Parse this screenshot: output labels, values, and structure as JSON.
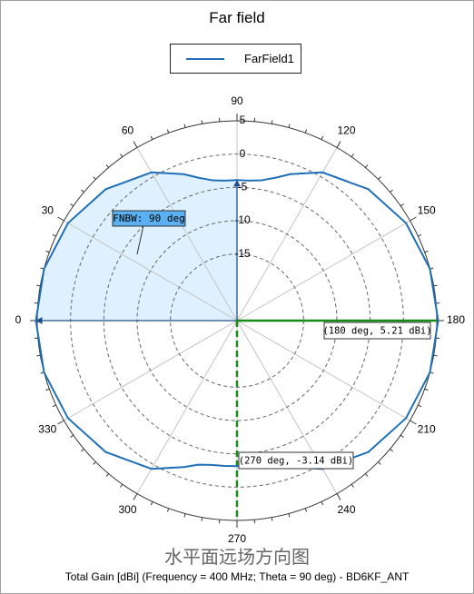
{
  "chart_data": {
    "type": "polar-line",
    "title": "Far field",
    "caption": "水平面远场方向图",
    "footer": "Total Gain [dBi] (Frequency = 400 MHz; Theta = 90 deg) - BD6KF_ANT",
    "legend": {
      "position": "top-center",
      "entries": [
        "FarField1"
      ]
    },
    "angle_labels": [
      "0",
      "30",
      "60",
      "90",
      "120",
      "150",
      "180",
      "210",
      "240",
      "270",
      "300",
      "330"
    ],
    "radial_ticks": [
      5,
      0,
      -5,
      -10,
      -15
    ],
    "radial_tick_labels": [
      "5",
      "0",
      "-5",
      "-10",
      "-15"
    ],
    "radial_range": [
      -25,
      5
    ],
    "grid": true,
    "series": [
      {
        "name": "FarField1",
        "color": "#1f6fb8",
        "phi_deg": [
          0,
          15,
          30,
          45,
          60,
          70,
          75,
          80,
          85,
          90,
          95,
          100,
          105,
          110,
          120,
          135,
          150,
          165,
          180,
          195,
          210,
          225,
          240,
          250,
          255,
          260,
          265,
          270,
          275,
          280,
          285,
          290,
          300,
          315,
          330,
          345
        ],
        "gain_dbi": [
          5.2,
          5.0,
          4.3,
          2.9,
          0.7,
          -1.6,
          -2.8,
          -3.6,
          -3.9,
          -3.9,
          -3.9,
          -3.6,
          -2.8,
          -1.6,
          0.7,
          2.9,
          4.3,
          5.0,
          5.21,
          5.0,
          4.3,
          2.9,
          0.7,
          -1.6,
          -2.6,
          -3.0,
          -3.1,
          -3.14,
          -3.1,
          -3.0,
          -2.6,
          -1.6,
          0.7,
          2.9,
          4.3,
          5.0
        ]
      }
    ],
    "fnbw_sector": {
      "from_deg": 0,
      "to_deg": 90,
      "label": "FNBW: 90 deg"
    },
    "annotations": [
      {
        "phi_deg": 180,
        "gain_dbi": 5.21,
        "label": "(180 deg, 5.21 dBi)"
      },
      {
        "phi_deg": 270,
        "gain_dbi": -3.14,
        "label": "(270 deg, -3.14 dBi)"
      }
    ]
  }
}
